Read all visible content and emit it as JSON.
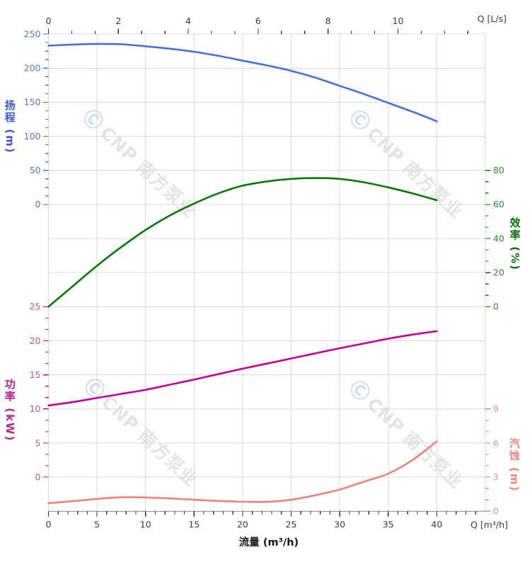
{
  "watermark": {
    "text": "CNP 南方泵业",
    "logo_glyph": "Ⓒ"
  },
  "chart_data": {
    "type": "line",
    "description": "Pump performance curves: head, efficiency, power and NPSH versus flow rate",
    "x_bottom": {
      "title": "流量 (m³/h)",
      "label": "Q [m³/h]",
      "ticks": [
        0,
        5,
        10,
        15,
        20,
        25,
        30,
        35,
        40
      ],
      "range": [
        0,
        45
      ],
      "minor_step": 1
    },
    "x_top": {
      "label": "Q [L/s]",
      "ticks": [
        0,
        2,
        4,
        6,
        8,
        10
      ],
      "range_ls": [
        0,
        12.5
      ],
      "ls_to_m3h": 3.6,
      "minor_step_ls": 0.6667
    },
    "y_axes": {
      "head": {
        "title": "扬程 (m)",
        "ticks": [
          250,
          200,
          150,
          100,
          50,
          0
        ],
        "range": [
          0,
          250
        ],
        "color": "#4470E0",
        "label_color": "#4D74E6",
        "title_color": "#3A55D9"
      },
      "eff": {
        "title": "效率 (%)",
        "ticks": [
          80,
          60,
          40,
          20,
          0
        ],
        "range": [
          0,
          80
        ],
        "color": "#097909",
        "label_color": "#2F8F2F",
        "title_color": "#0A700A"
      },
      "power": {
        "title": "功率 (kW)",
        "ticks": [
          25,
          20,
          15,
          10,
          5,
          0
        ],
        "range": [
          0,
          25
        ],
        "color": "#CC0099",
        "label_color": "#C74FA5",
        "title_color": "#BB1F99"
      },
      "npsh": {
        "title": "汽蚀 (m)",
        "ticks": [
          9,
          6,
          3,
          0
        ],
        "range": [
          0,
          9
        ],
        "color": "#F28177",
        "label_color": "#F5928B",
        "title_color": "#F2847C"
      }
    },
    "grid": {
      "on": true,
      "color": "#D9D9D9"
    },
    "series": [
      {
        "name": "head",
        "axis": "head",
        "color": "#4470E0",
        "x": [
          0,
          2.5,
          5,
          7.5,
          10,
          12.5,
          15,
          17.5,
          20,
          22.5,
          25,
          27.5,
          30,
          32.5,
          35,
          37.5,
          40
        ],
        "y": [
          233,
          234.5,
          235.5,
          235,
          232,
          228.5,
          224,
          218,
          211,
          204,
          196,
          186,
          174,
          162,
          149,
          136,
          122
        ]
      },
      {
        "name": "efficiency",
        "axis": "eff",
        "color": "#097909",
        "x": [
          0,
          2.5,
          5,
          7.5,
          10,
          12.5,
          15,
          17.5,
          20,
          22.5,
          25,
          27.5,
          30,
          32.5,
          35,
          37.5,
          40
        ],
        "y": [
          0,
          12,
          24,
          35,
          45,
          53.5,
          60.5,
          66.5,
          71,
          73.5,
          75,
          75.5,
          75,
          73,
          70,
          66.5,
          62.5
        ]
      },
      {
        "name": "power",
        "axis": "power",
        "color": "#CC0099",
        "x": [
          0,
          2.5,
          5,
          7.5,
          10,
          12.5,
          15,
          17.5,
          20,
          22.5,
          25,
          27.5,
          30,
          32.5,
          35,
          37.5,
          40
        ],
        "y": [
          10.5,
          11,
          11.6,
          12.2,
          12.8,
          13.55,
          14.3,
          15.1,
          15.9,
          16.65,
          17.4,
          18.15,
          18.9,
          19.6,
          20.3,
          20.9,
          21.4
        ]
      },
      {
        "name": "npsh",
        "axis": "npsh",
        "color": "#F28177",
        "x": [
          0,
          2.5,
          5,
          7.5,
          10,
          12.5,
          15,
          17.5,
          20,
          22.5,
          25,
          27.5,
          30,
          32.5,
          35,
          37.5,
          40
        ],
        "y": [
          0.7,
          0.88,
          1.08,
          1.22,
          1.2,
          1.12,
          1.0,
          0.9,
          0.83,
          0.82,
          1.0,
          1.4,
          1.9,
          2.6,
          3.3,
          4.5,
          6.15
        ]
      }
    ]
  }
}
